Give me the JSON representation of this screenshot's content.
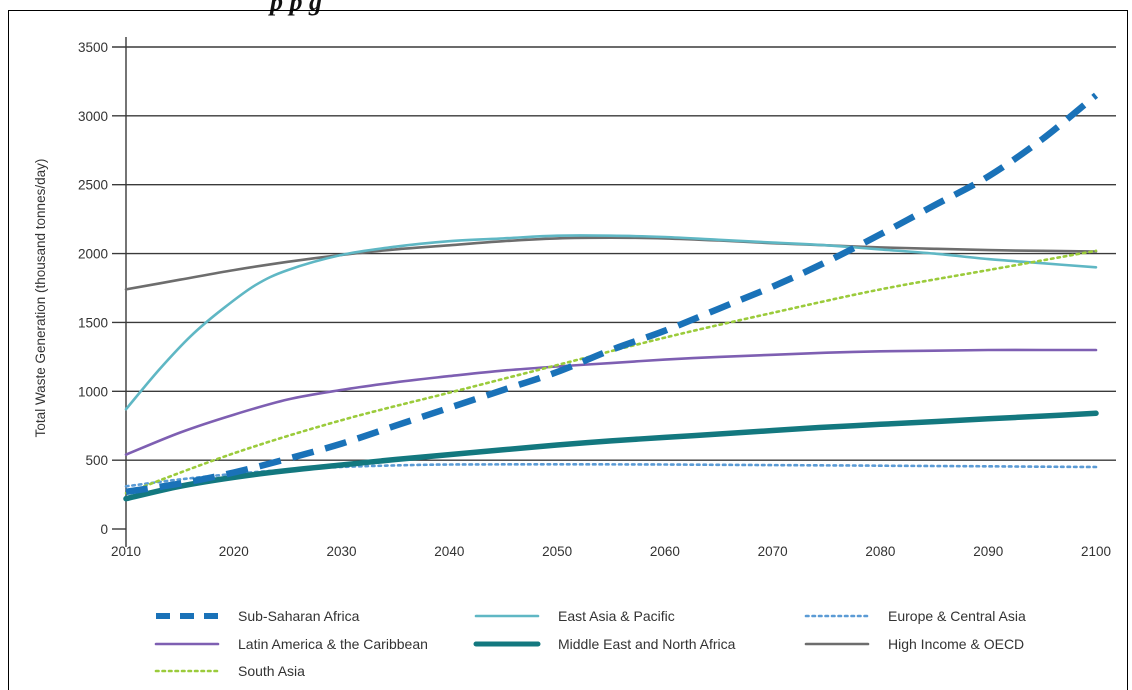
{
  "header_fragment": "p                    p        g",
  "chart_data": {
    "type": "line",
    "title": "",
    "xlabel": "",
    "ylabel": "Total Waste Generation (thousand tonnes/day)",
    "xlim": [
      2010,
      2100
    ],
    "ylim": [
      0,
      3500
    ],
    "x_ticks": [
      2010,
      2020,
      2030,
      2040,
      2050,
      2060,
      2070,
      2080,
      2090,
      2100
    ],
    "y_ticks": [
      0,
      500,
      1000,
      1500,
      2000,
      2500,
      3000,
      3500
    ],
    "grid": "horizontal",
    "legend_position": "bottom",
    "series": [
      {
        "name": "Sub-Saharan Africa",
        "color": "#1a72b8",
        "style": "dashed",
        "x": [
          2010,
          2015,
          2020,
          2025,
          2030,
          2035,
          2040,
          2045,
          2050,
          2055,
          2060,
          2065,
          2070,
          2075,
          2080,
          2085,
          2090,
          2095,
          2100
        ],
        "y": [
          270,
          330,
          410,
          510,
          620,
          750,
          880,
          1010,
          1140,
          1300,
          1440,
          1600,
          1760,
          1940,
          2140,
          2350,
          2560,
          2830,
          3150
        ]
      },
      {
        "name": "East Asia & Pacific",
        "color": "#5fb7c4",
        "style": "solid",
        "x": [
          2010,
          2013,
          2016,
          2019,
          2022,
          2025,
          2030,
          2035,
          2040,
          2045,
          2050,
          2055,
          2060,
          2065,
          2070,
          2075,
          2080,
          2085,
          2090,
          2095,
          2100
        ],
        "y": [
          870,
          1150,
          1400,
          1600,
          1770,
          1880,
          1990,
          2050,
          2090,
          2110,
          2130,
          2130,
          2120,
          2100,
          2080,
          2060,
          2030,
          2000,
          1960,
          1930,
          1900
        ]
      },
      {
        "name": "Europe & Central Asia",
        "color": "#5b9bd5",
        "style": "dotted",
        "x": [
          2010,
          2015,
          2020,
          2025,
          2030,
          2035,
          2040,
          2050,
          2060,
          2070,
          2080,
          2090,
          2100
        ],
        "y": [
          310,
          360,
          400,
          430,
          450,
          462,
          468,
          470,
          468,
          464,
          460,
          455,
          450
        ]
      },
      {
        "name": "Latin America & the Caribbean",
        "color": "#7e5fb2",
        "style": "solid",
        "x": [
          2010,
          2015,
          2020,
          2025,
          2030,
          2035,
          2040,
          2045,
          2050,
          2055,
          2060,
          2065,
          2070,
          2075,
          2080,
          2085,
          2090,
          2095,
          2100
        ],
        "y": [
          540,
          700,
          830,
          940,
          1010,
          1065,
          1110,
          1150,
          1180,
          1205,
          1230,
          1250,
          1265,
          1280,
          1290,
          1295,
          1300,
          1300,
          1300
        ]
      },
      {
        "name": "Middle East and North Africa",
        "color": "#13787f",
        "style": "solid-thick",
        "x": [
          2010,
          2015,
          2020,
          2025,
          2030,
          2035,
          2040,
          2045,
          2050,
          2055,
          2060,
          2065,
          2070,
          2075,
          2080,
          2085,
          2090,
          2095,
          2100
        ],
        "y": [
          220,
          310,
          375,
          425,
          465,
          505,
          540,
          575,
          610,
          640,
          665,
          690,
          715,
          740,
          760,
          780,
          800,
          820,
          840
        ]
      },
      {
        "name": "High Income & OECD",
        "color": "#6d6d6d",
        "style": "solid",
        "x": [
          2010,
          2015,
          2020,
          2025,
          2030,
          2035,
          2040,
          2045,
          2050,
          2055,
          2060,
          2065,
          2070,
          2075,
          2080,
          2085,
          2090,
          2095,
          2100
        ],
        "y": [
          1740,
          1810,
          1880,
          1940,
          1990,
          2030,
          2060,
          2090,
          2110,
          2115,
          2110,
          2095,
          2075,
          2060,
          2045,
          2035,
          2025,
          2020,
          2015
        ]
      },
      {
        "name": "South Asia",
        "color": "#9bcb3b",
        "style": "dotted",
        "x": [
          2010,
          2020,
          2030,
          2040,
          2050,
          2060,
          2070,
          2080,
          2090,
          2100
        ],
        "y": [
          260,
          550,
          790,
          990,
          1190,
          1390,
          1570,
          1740,
          1880,
          2020
        ]
      }
    ]
  }
}
